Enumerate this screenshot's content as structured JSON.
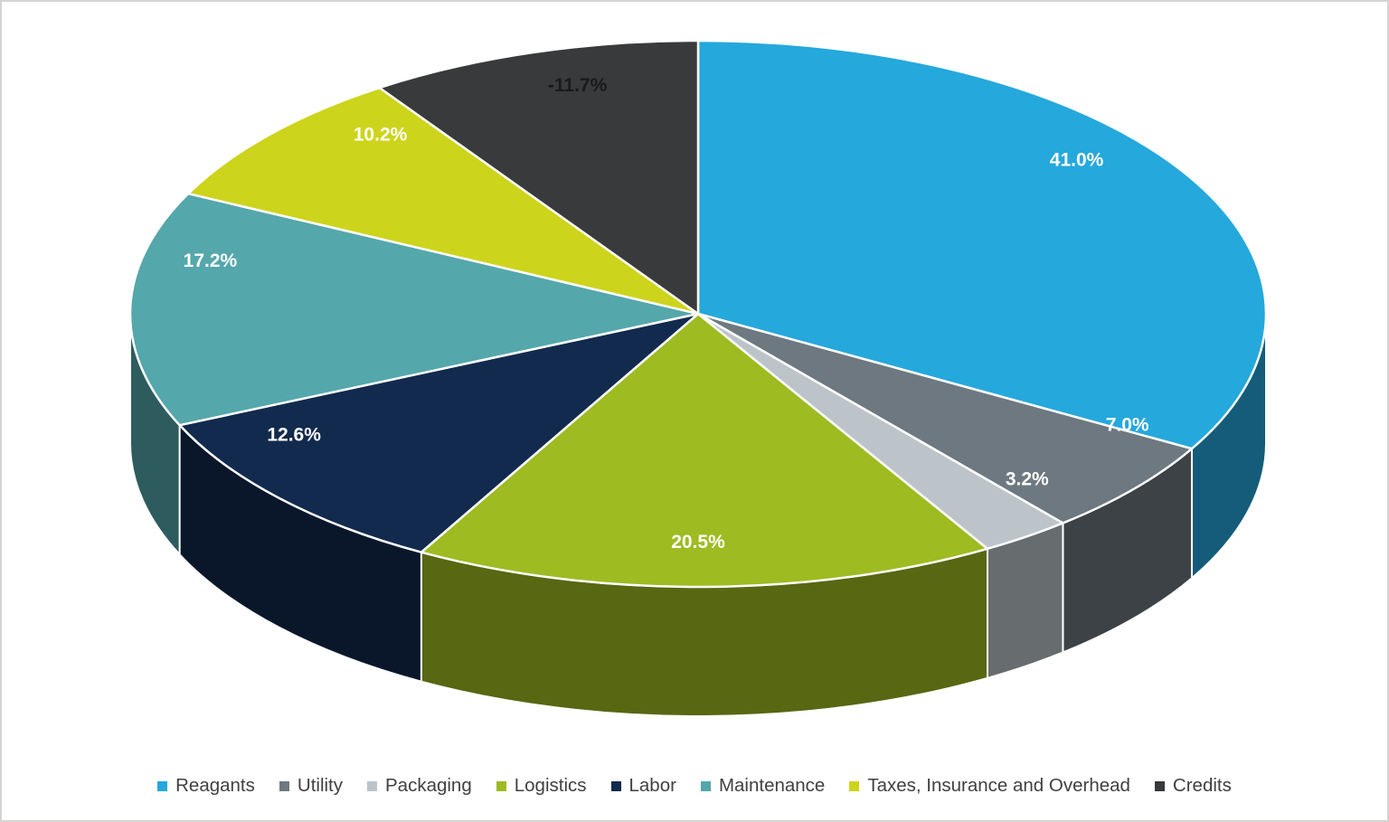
{
  "chart_data": {
    "type": "pie",
    "style": "3d",
    "title": "",
    "legend_position": "bottom",
    "grid": false,
    "background_color": "#ffffff",
    "border_color": "#d6d3d3",
    "legend_text_color": "#404040",
    "slice_border_color": "#ffffff",
    "slices": [
      {
        "label": "Reagants",
        "value": 41.0,
        "display": "41.0%",
        "color": "#25a8dc",
        "label_color": "#ffffff"
      },
      {
        "label": "Utility",
        "value": 7.0,
        "display": "7.0%",
        "color": "#6d7880",
        "label_color": "#ffffff"
      },
      {
        "label": "Packaging",
        "value": 3.2,
        "display": "3.2%",
        "color": "#bcc4ca",
        "label_color": "#ffffff"
      },
      {
        "label": "Logistics",
        "value": 20.5,
        "display": "20.5%",
        "color": "#9ebb21",
        "label_color": "#ffffff"
      },
      {
        "label": "Labor",
        "value": 12.6,
        "display": "12.6%",
        "color": "#122a4e",
        "label_color": "#ffffff"
      },
      {
        "label": "Maintenance",
        "value": 17.2,
        "display": "17.2%",
        "color": "#54a7ab",
        "label_color": "#ffffff"
      },
      {
        "label": "Taxes, Insurance and Overhead",
        "value": 10.2,
        "display": "10.2%",
        "color": "#cdd41c",
        "label_color": "#ffffff"
      },
      {
        "label": "Credits",
        "value": -11.7,
        "display": "-11.7%",
        "color": "#383a3b",
        "label_color": "#1a1a1a"
      }
    ]
  }
}
